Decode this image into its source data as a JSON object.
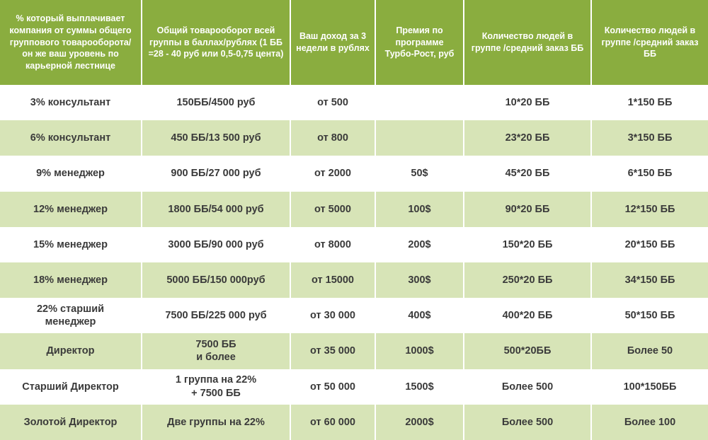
{
  "table": {
    "type": "table",
    "background_odd": "#ffffff",
    "background_even": "#d7e4b7",
    "header_bg": "#8aad3f",
    "header_fg": "#ffffff",
    "cell_fg": "#3a3a3a",
    "border_color": "#ffffff",
    "header_fontsize": 12.5,
    "cell_fontsize": 14.5,
    "col_widths_pct": [
      20.0,
      21.0,
      12.0,
      12.5,
      18.0,
      16.5
    ],
    "columns": [
      "% который выплачивает компания от суммы общего группового товарооборота/ он же ваш уровень по карьерной лестнице",
      "Общий товарооборот всей группы в баллах/рублях (1 ББ =28 - 40 руб или 0,5-0,75 цента)",
      "Ваш доход за 3 недели в рублях",
      "Премия по программе Турбо-Рост, руб",
      "Количество людей в группе /средний заказ ББ",
      "Количество людей в группе /средний заказ ББ"
    ],
    "rows": [
      [
        "3% консультант",
        "150ББ/4500 руб",
        "от 500",
        "",
        "10*20 ББ",
        "1*150 ББ"
      ],
      [
        "6% консультант",
        "450 ББ/13 500 руб",
        "от 800",
        "",
        "23*20 ББ",
        "3*150 ББ"
      ],
      [
        "9% менеджер",
        "900 ББ/27 000 руб",
        "от 2000",
        "50$",
        "45*20 ББ",
        "6*150 ББ"
      ],
      [
        "12% менеджер",
        "1800 ББ/54 000 руб",
        "от 5000",
        "100$",
        "90*20 ББ",
        "12*150 ББ"
      ],
      [
        "15% менеджер",
        "3000 ББ/90 000 руб",
        "от 8000",
        "200$",
        "150*20 ББ",
        "20*150 ББ"
      ],
      [
        "18% менеджер",
        "5000 ББ/150 000руб",
        "от 15000",
        "300$",
        "250*20 ББ",
        "34*150 ББ"
      ],
      [
        "22% старший\nменеджер",
        "7500 ББ/225 000 руб",
        "от 30 000",
        "400$",
        "400*20 ББ",
        "50*150 ББ"
      ],
      [
        "Директор",
        "7500 ББ\nи более",
        "от 35 000",
        "1000$",
        "500*20ББ",
        "Более 50"
      ],
      [
        "Старший Директор",
        "1 группа на 22%\n+ 7500 ББ",
        "от 50 000",
        "1500$",
        "Более 500",
        "100*150ББ"
      ],
      [
        "Золотой Директор",
        "Две группы на 22%",
        "от 60 000",
        "2000$",
        "Более 500",
        "Более 100"
      ]
    ]
  }
}
